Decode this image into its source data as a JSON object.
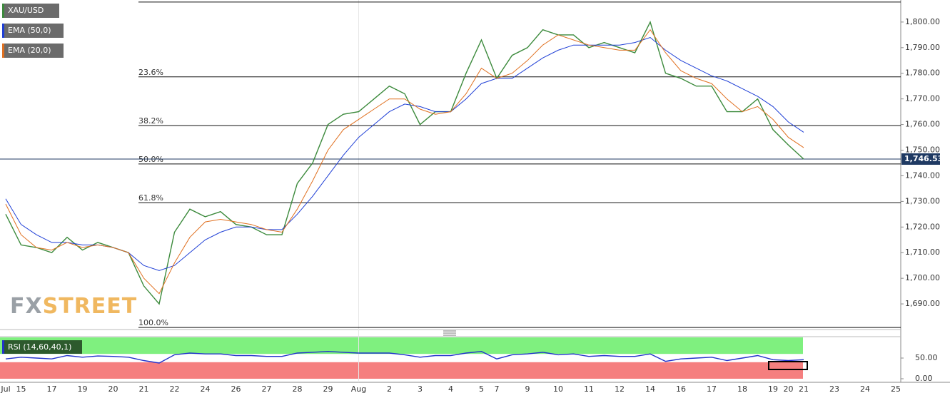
{
  "chart_data": [
    {
      "type": "line",
      "categories": [
        "Jul",
        "15",
        null,
        "17",
        null,
        "19",
        null,
        "20",
        null,
        "21",
        null,
        "22",
        null,
        "24",
        null,
        "26",
        null,
        "27",
        null,
        "28",
        null,
        "29",
        null,
        "Aug",
        null,
        "2",
        null,
        "3",
        null,
        "4",
        null,
        "5",
        "7",
        null,
        "9",
        null,
        "10",
        null,
        "11",
        null,
        "12",
        null,
        "14",
        null,
        "16",
        null,
        "17",
        null,
        "18",
        null,
        "19",
        "20",
        "21",
        null,
        "23",
        null,
        "24",
        null,
        "25"
      ],
      "series": [
        {
          "name": "XAU/USD",
          "color": "#3c8a3c",
          "values": [
            1725,
            1713,
            1712,
            1710,
            1716,
            1711,
            1714,
            1712,
            1710,
            1697,
            1690,
            1718,
            1727,
            1724,
            1726,
            1721,
            1720,
            1717,
            1717,
            1737,
            1745,
            1760,
            1764,
            1765,
            1770,
            1775,
            1772,
            1760,
            1765,
            1765,
            1780,
            1793,
            1778,
            1787,
            1790,
            1797,
            1795,
            1795,
            1790,
            1792,
            1790,
            1788,
            1800,
            1780,
            1778,
            1775,
            1775,
            1765,
            1765,
            1770,
            1758,
            1752,
            1746.53,
            null,
            null,
            null,
            null,
            null,
            null
          ]
        },
        {
          "name": "EMA (50,0)",
          "color": "#1f3fd6",
          "values": [
            1731,
            1721,
            1717,
            1714,
            1714,
            1713,
            1713,
            1712,
            1710,
            1705,
            1703,
            1705,
            1710,
            1715,
            1718,
            1720,
            1720,
            1719,
            1719,
            1725,
            1732,
            1740,
            1748,
            1755,
            1760,
            1765,
            1768,
            1767,
            1765,
            1765,
            1770,
            1776,
            1778,
            1778,
            1782,
            1786,
            1789,
            1791,
            1791,
            1791,
            1791,
            1792,
            1794,
            1789,
            1785,
            1782,
            1779,
            1777,
            1774,
            1771,
            1767,
            1761,
            1757,
            null,
            null,
            null,
            null,
            null,
            null
          ]
        },
        {
          "name": "EMA (20,0)",
          "color": "#e07020",
          "values": [
            1729,
            1717,
            1712,
            1711,
            1714,
            1712,
            1713,
            1712,
            1710,
            1700,
            1694,
            1706,
            1716,
            1722,
            1723,
            1722,
            1721,
            1719,
            1718,
            1727,
            1738,
            1750,
            1758,
            1762,
            1766,
            1770,
            1770,
            1766,
            1764,
            1765,
            1772,
            1782,
            1778,
            1780,
            1785,
            1791,
            1795,
            1793,
            1791,
            1790,
            1789,
            1789,
            1797,
            1788,
            1781,
            1778,
            1776,
            1770,
            1765,
            1767,
            1762,
            1755,
            1751,
            null,
            null,
            null,
            null,
            null,
            null
          ]
        }
      ],
      "ylim": [
        1680,
        1808.6
      ],
      "yticks": [
        {
          "value": 1690,
          "label": "1,690.00"
        },
        {
          "value": 1700,
          "label": "1,700.00"
        },
        {
          "value": 1710,
          "label": "1,710.00"
        },
        {
          "value": 1720,
          "label": "1,720.00"
        },
        {
          "value": 1730,
          "label": "1,730.00"
        },
        {
          "value": 1740,
          "label": "1,740.00"
        },
        {
          "value": 1750,
          "label": "1,750.00"
        },
        {
          "value": 1760,
          "label": "1,760.00"
        },
        {
          "value": 1770,
          "label": "1,770.00"
        },
        {
          "value": 1780,
          "label": "1,780.00"
        },
        {
          "value": 1790,
          "label": "1,790.00"
        },
        {
          "value": 1800,
          "label": "1,800.00"
        }
      ],
      "last_price": {
        "value": 1746.53,
        "label": "1,746.53",
        "color": "#1f3a63"
      },
      "fib_levels": [
        {
          "value": 1807.8
        },
        {
          "value": 1778.6,
          "label": "23.6%"
        },
        {
          "value": 1759.6,
          "label": "38.2%"
        },
        {
          "value": 1744.6,
          "label": "50.0%"
        },
        {
          "value": 1729.5,
          "label": "61.8%"
        },
        {
          "value": 1680.8,
          "label": "100.0%"
        }
      ],
      "watermark": {
        "left": "FX",
        "right": "STREET"
      }
    },
    {
      "type": "line",
      "series": [
        {
          "name": "RSI (14,60,40,1)",
          "color": "#2233cc",
          "values": [
            48,
            52,
            50,
            48,
            56,
            52,
            55,
            54,
            52,
            44,
            38,
            58,
            62,
            60,
            60,
            56,
            56,
            54,
            54,
            62,
            64,
            66,
            64,
            62,
            62,
            62,
            58,
            52,
            56,
            56,
            62,
            66,
            48,
            58,
            60,
            64,
            58,
            60,
            54,
            56,
            54,
            54,
            60,
            42,
            48,
            50,
            52,
            44,
            50,
            56,
            46,
            44,
            46,
            null,
            null,
            null,
            null,
            null,
            null
          ]
        }
      ],
      "upper_band": 60,
      "lower_band": 40,
      "ylim": [
        0,
        100
      ],
      "yticks": [
        {
          "value": 50,
          "label": "50.00"
        },
        {
          "value": 0,
          "label": "0.00"
        }
      ]
    }
  ]
}
